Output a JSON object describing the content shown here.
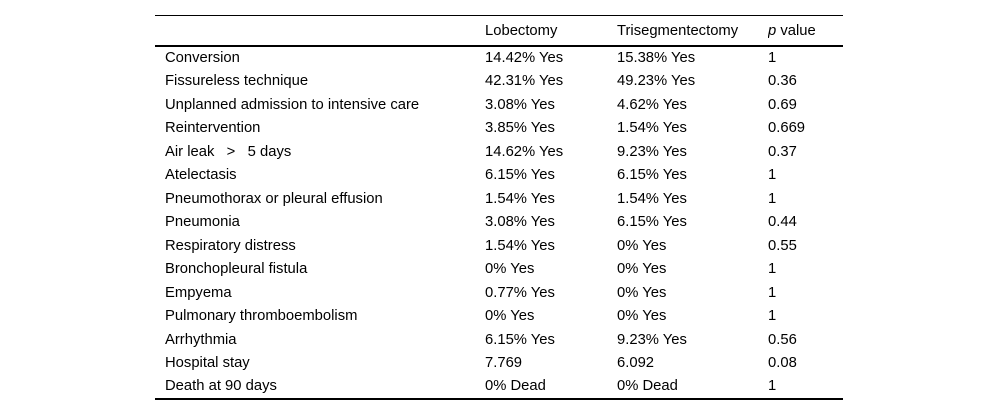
{
  "page": {
    "background": "#ffffff"
  },
  "colors": {
    "text": "#000000",
    "rules": "#000000"
  },
  "table": {
    "header": {
      "label": "",
      "lobectomy": "Lobectomy",
      "trisegmentectomy": "Trisegmentectomy",
      "p_italic": "p",
      "p_rest": " value"
    },
    "rows": [
      [
        "Conversion",
        "14.42% Yes",
        "15.38% Yes",
        "1"
      ],
      [
        "Fissureless technique",
        "42.31% Yes",
        "49.23% Yes",
        "0.36"
      ],
      [
        "Unplanned admission to intensive care",
        "3.08% Yes",
        "4.62% Yes",
        "0.69"
      ],
      [
        "Reintervention",
        "3.85% Yes",
        "1.54% Yes",
        "0.669"
      ],
      [
        "Air leak   >   5 days",
        "14.62% Yes",
        "9.23% Yes",
        "0.37"
      ],
      [
        "Atelectasis",
        "6.15% Yes",
        "6.15% Yes",
        "1"
      ],
      [
        "Pneumothorax or pleural effusion",
        "1.54% Yes",
        "1.54% Yes",
        "1"
      ],
      [
        "Pneumonia",
        "3.08% Yes",
        "6.15% Yes",
        "0.44"
      ],
      [
        "Respiratory distress",
        "1.54% Yes",
        "0% Yes",
        "0.55"
      ],
      [
        "Bronchopleural fistula",
        "0% Yes",
        "0% Yes",
        "1"
      ],
      [
        "Empyema",
        "0.77% Yes",
        "0% Yes",
        "1"
      ],
      [
        "Pulmonary thromboembolism",
        "0% Yes",
        "0% Yes",
        "1"
      ],
      [
        "Arrhythmia",
        "6.15% Yes",
        "9.23% Yes",
        "0.56"
      ],
      [
        "Hospital stay",
        "7.769",
        "6.092",
        "0.08"
      ],
      [
        "Death at 90 days",
        "0% Dead",
        "0% Dead",
        "1"
      ]
    ]
  }
}
